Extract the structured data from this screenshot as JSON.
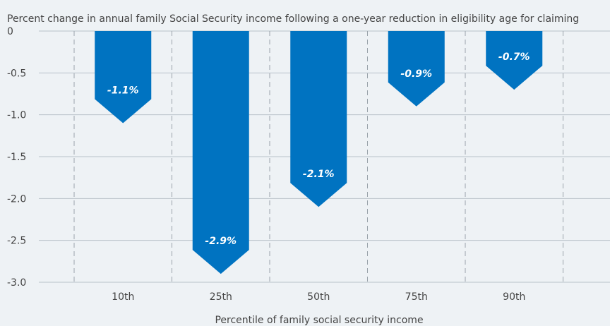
{
  "chart_data": {
    "type": "bar",
    "title": "Percent change in annual family Social Security income following a one-year reduction in eligibility age for claiming",
    "xlabel": "Percentile of family social security income",
    "ylabel": "",
    "categories": [
      "10th",
      "25th",
      "50th",
      "75th",
      "90th"
    ],
    "values": [
      -1.1,
      -2.9,
      -2.1,
      -0.9,
      -0.7
    ],
    "value_labels": [
      "-1.1%",
      "-2.9%",
      "-2.1%",
      "-0.9%",
      "-0.7%"
    ],
    "ylim": [
      -3.0,
      0
    ],
    "yticks": [
      0,
      -0.5,
      -1.0,
      -1.5,
      -2.0,
      -2.5,
      -3.0
    ],
    "ytick_labels": [
      "0",
      "-0.5",
      "-1.0",
      "-1.5",
      "-2.0",
      "-2.5",
      "-3.0"
    ],
    "grid": true,
    "bar_color": "#0073c1",
    "bar_shape": "pointed-bottom arrow"
  }
}
